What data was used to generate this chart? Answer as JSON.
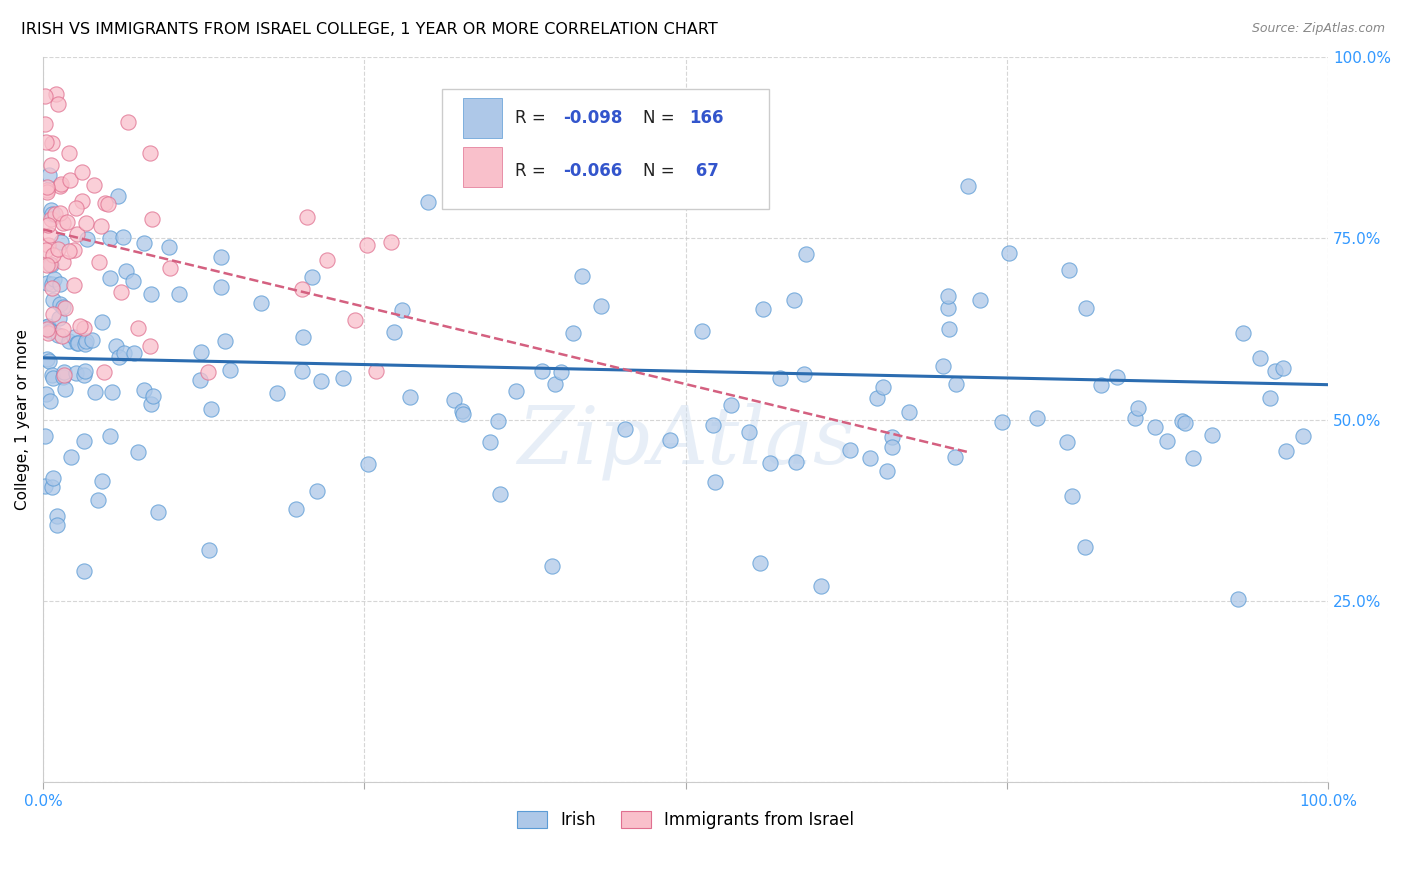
{
  "title": "IRISH VS IMMIGRANTS FROM ISRAEL COLLEGE, 1 YEAR OR MORE CORRELATION CHART",
  "source": "Source: ZipAtlas.com",
  "ylabel": "College, 1 year or more",
  "xlim": [
    0,
    1.0
  ],
  "ylim": [
    0,
    1.0
  ],
  "blue_color": "#aec8e8",
  "blue_color_edge": "#5b9bd5",
  "pink_color": "#f9c0cb",
  "pink_color_edge": "#e07090",
  "trend_blue_color": "#2b6cb0",
  "trend_pink_color": "#d46080",
  "watermark": "ZipAtlas",
  "blue_trend_x0": 0.0,
  "blue_trend_y0": 0.585,
  "blue_trend_x1": 1.0,
  "blue_trend_y1": 0.548,
  "pink_trend_x0": 0.0,
  "pink_trend_y0": 0.762,
  "pink_trend_x1": 0.72,
  "pink_trend_y1": 0.455
}
